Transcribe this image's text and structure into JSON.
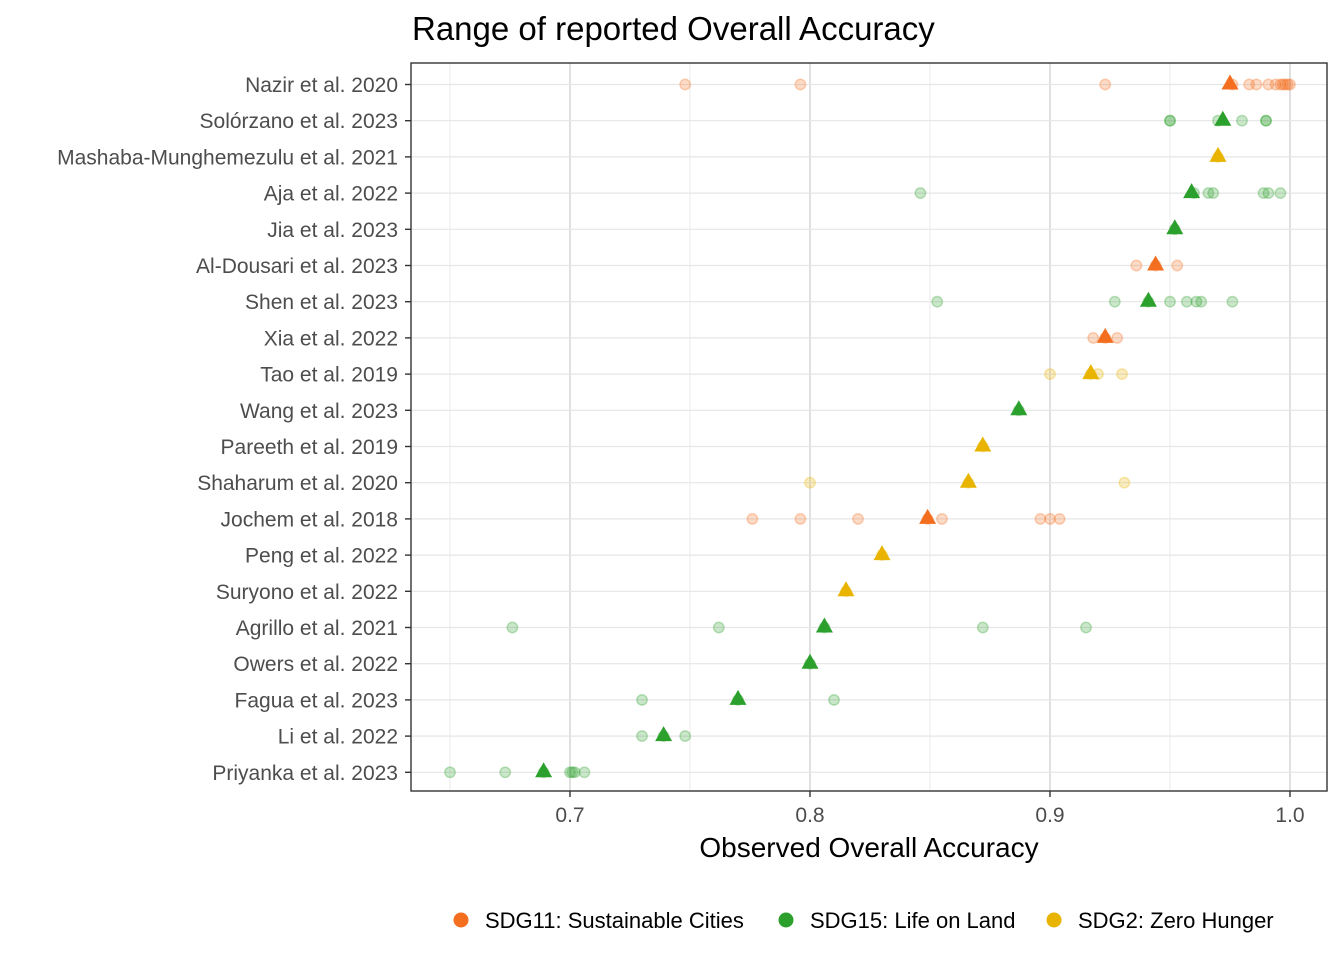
{
  "chart_data": {
    "type": "scatter",
    "title": "Range of reported Overall Accuracy",
    "xlabel": "Observed Overall Accuracy",
    "ylabel": "",
    "xlim": [
      0.634,
      1.016
    ],
    "x_ticks": [
      0.7,
      0.8,
      0.9,
      1.0
    ],
    "x_tick_labels": [
      "0.7",
      "0.8",
      "0.9",
      "1.0"
    ],
    "grid": true,
    "legend_position": "bottom",
    "series": [
      {
        "name": "SDG11: Sustainable Cities",
        "color": "#F46E1F"
      },
      {
        "name": "SDG15: Life on Land",
        "color": "#2CA02C"
      },
      {
        "name": "SDG2: Zero Hunger",
        "color": "#E8B400"
      }
    ],
    "studies": [
      {
        "label": "Nazir et al. 2020",
        "sdg": 0,
        "mean": 0.975,
        "points": [
          0.748,
          0.796,
          0.923,
          0.976,
          0.983,
          0.986,
          0.991,
          0.994,
          0.996,
          0.997,
          0.998,
          0.999,
          1.0
        ]
      },
      {
        "label": "Solórzano et al. 2023",
        "sdg": 1,
        "mean": 0.972,
        "points": [
          0.95,
          0.95,
          0.97,
          0.98,
          0.99,
          0.99
        ]
      },
      {
        "label": "Mashaba-Munghemezulu et al. 2021",
        "sdg": 2,
        "mean": 0.97,
        "points": [
          0.97
        ]
      },
      {
        "label": "Aja et al. 2022",
        "sdg": 1,
        "mean": 0.959,
        "points": [
          0.846,
          0.96,
          0.966,
          0.968,
          0.989,
          0.991,
          0.996
        ]
      },
      {
        "label": "Jia et al. 2023",
        "sdg": 1,
        "mean": 0.952,
        "points": [
          0.952
        ]
      },
      {
        "label": "Al-Dousari et al. 2023",
        "sdg": 0,
        "mean": 0.944,
        "points": [
          0.936,
          0.944,
          0.953
        ]
      },
      {
        "label": "Shen et al. 2023",
        "sdg": 1,
        "mean": 0.941,
        "points": [
          0.853,
          0.927,
          0.941,
          0.95,
          0.957,
          0.961,
          0.963,
          0.976
        ]
      },
      {
        "label": "Xia et al. 2022",
        "sdg": 0,
        "mean": 0.923,
        "points": [
          0.918,
          0.923,
          0.928
        ]
      },
      {
        "label": "Tao et al. 2019",
        "sdg": 2,
        "mean": 0.917,
        "points": [
          0.9,
          0.917,
          0.92,
          0.93
        ]
      },
      {
        "label": "Wang et al. 2023",
        "sdg": 1,
        "mean": 0.887,
        "points": [
          0.887
        ]
      },
      {
        "label": "Pareeth et al. 2019",
        "sdg": 2,
        "mean": 0.872,
        "points": [
          0.872
        ]
      },
      {
        "label": "Shaharum et al. 2020",
        "sdg": 2,
        "mean": 0.866,
        "points": [
          0.8,
          0.866,
          0.931
        ]
      },
      {
        "label": "Jochem et al. 2018",
        "sdg": 0,
        "mean": 0.849,
        "points": [
          0.776,
          0.796,
          0.82,
          0.849,
          0.855,
          0.896,
          0.9,
          0.904
        ]
      },
      {
        "label": "Peng et al. 2022",
        "sdg": 2,
        "mean": 0.83,
        "points": [
          0.83
        ]
      },
      {
        "label": "Suryono et al. 2022",
        "sdg": 2,
        "mean": 0.815,
        "points": [
          0.815
        ]
      },
      {
        "label": "Agrillo et al. 2021",
        "sdg": 1,
        "mean": 0.806,
        "points": [
          0.676,
          0.762,
          0.806,
          0.872,
          0.915
        ]
      },
      {
        "label": "Owers et al. 2022",
        "sdg": 1,
        "mean": 0.8,
        "points": [
          0.8
        ]
      },
      {
        "label": "Fagua et al. 2023",
        "sdg": 1,
        "mean": 0.77,
        "points": [
          0.73,
          0.77,
          0.81
        ]
      },
      {
        "label": "Li et al. 2022",
        "sdg": 1,
        "mean": 0.739,
        "points": [
          0.73,
          0.739,
          0.748
        ]
      },
      {
        "label": "Priyanka et al. 2023",
        "sdg": 1,
        "mean": 0.689,
        "points": [
          0.65,
          0.673,
          0.689,
          0.7,
          0.701,
          0.702,
          0.706
        ]
      }
    ]
  }
}
